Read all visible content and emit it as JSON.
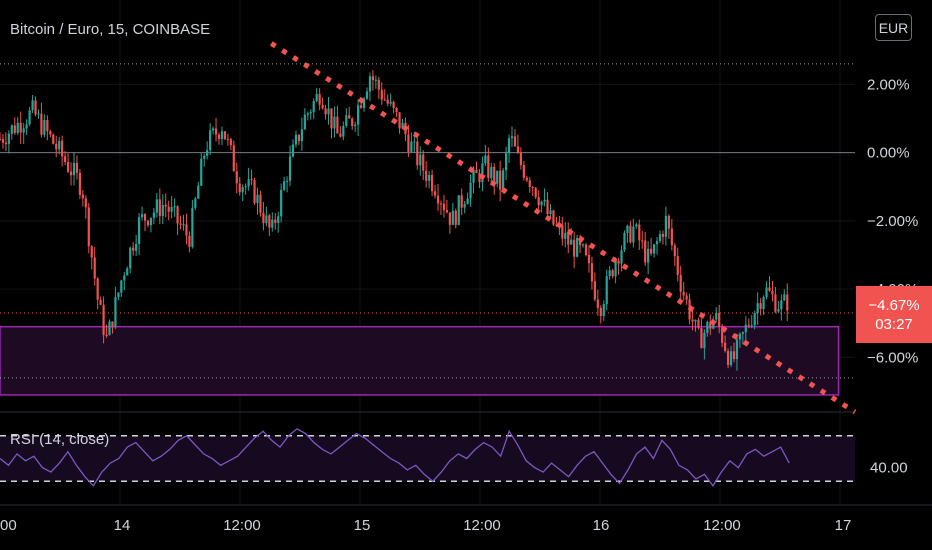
{
  "header": {
    "symbol_title": "Bitcoin / Euro, 15, COINBASE",
    "currency_button": "EUR"
  },
  "rsi_panel": {
    "title": "RSI (14, close)",
    "level_label": "40.00"
  },
  "price_badge": {
    "value": "−4.67%",
    "countdown": "03:27",
    "color": "#f05350"
  },
  "colors": {
    "background": "#000000",
    "up_candle": "#26a69a",
    "down_candle": "#ef5350",
    "trendline": "#f05350",
    "zone_border": "#9c27b0",
    "zone_fill": "#1f0a24",
    "rsi_line": "#7e57c2",
    "rsi_band_fill": "#150a1f"
  },
  "chart_data": {
    "type": "candlestick",
    "symbol": "Bitcoin / Euro",
    "interval": "15",
    "exchange": "COINBASE",
    "y_axis": {
      "unit": "percent",
      "tick_labels": [
        "2.00%",
        "0.00%",
        "−2.00%",
        "−4.00%",
        "−6.00%"
      ],
      "tick_values": [
        2,
        0,
        -2,
        -4,
        -6
      ],
      "range": [
        -7.6,
        3.3
      ]
    },
    "x_axis": {
      "tick_labels": [
        "00",
        "14",
        "12:00",
        "15",
        "12:00",
        "16",
        "12:00",
        "17"
      ]
    },
    "close_path": [
      [
        0,
        0.4
      ],
      [
        4,
        1.2
      ],
      [
        7,
        0.1
      ],
      [
        10,
        -1.0
      ],
      [
        12,
        -4.5
      ],
      [
        13,
        -5.5
      ],
      [
        15,
        -3.5
      ],
      [
        17,
        -2.0
      ],
      [
        20,
        -1.5
      ],
      [
        23,
        -2.5
      ],
      [
        25,
        0.2
      ],
      [
        27,
        0.8
      ],
      [
        29,
        -0.8
      ],
      [
        31,
        -1.2
      ],
      [
        33,
        -2.4
      ],
      [
        35,
        -0.5
      ],
      [
        37,
        1.0
      ],
      [
        39,
        1.8
      ],
      [
        41,
        0.5
      ],
      [
        43,
        1.0
      ],
      [
        45,
        2.3
      ],
      [
        47,
        1.5
      ],
      [
        49,
        0.7
      ],
      [
        51,
        -0.3
      ],
      [
        53,
        -1.0
      ],
      [
        55,
        -2.0
      ],
      [
        57,
        -1.0
      ],
      [
        59,
        -0.4
      ],
      [
        61,
        -1.0
      ],
      [
        62,
        0.5
      ],
      [
        63,
        -0.2
      ],
      [
        65,
        -1.0
      ],
      [
        67,
        -2.0
      ],
      [
        69,
        -2.6
      ],
      [
        71,
        -3.0
      ],
      [
        73,
        -4.5
      ],
      [
        75,
        -3.0
      ],
      [
        77,
        -2.2
      ],
      [
        79,
        -3.2
      ],
      [
        81,
        -2.0
      ],
      [
        83,
        -4.0
      ],
      [
        85,
        -5.5
      ],
      [
        87,
        -4.8
      ],
      [
        89,
        -6.2
      ],
      [
        91,
        -5.0
      ],
      [
        93,
        -4.0
      ],
      [
        95,
        -4.5
      ],
      [
        96,
        -4.3
      ]
    ],
    "last_change_percent": -4.67,
    "annotations": {
      "descending_trendline": {
        "from": [
          33,
          3.2
        ],
        "to": [
          104,
          -7.6
        ],
        "style": "dotted"
      },
      "support_zone": {
        "top": -5.1,
        "bottom": -7.1,
        "x_end": 102
      },
      "dotted_levels": [
        2.6,
        -4.7,
        -6.6
      ],
      "solid_level": 0
    },
    "rsi": {
      "period": 14,
      "source": "close",
      "band": [
        60,
        40
      ],
      "level_label": "40.00",
      "range": [
        30,
        70
      ],
      "values": [
        50,
        47,
        52,
        49,
        51,
        46,
        44,
        48,
        53,
        47,
        42,
        38,
        44,
        48,
        50,
        55,
        57,
        53,
        49,
        51,
        54,
        58,
        60,
        56,
        52,
        50,
        47,
        49,
        51,
        55,
        59,
        62,
        58,
        55,
        60,
        63,
        61,
        57,
        54,
        52,
        55,
        58,
        61,
        59,
        56,
        53,
        50,
        48,
        45,
        47,
        43,
        40,
        44,
        49,
        52,
        50,
        54,
        57,
        55,
        51,
        62,
        56,
        49,
        46,
        44,
        48,
        45,
        42,
        47,
        51,
        53,
        48,
        43,
        39,
        45,
        52,
        55,
        50,
        58,
        54,
        47,
        45,
        41,
        43,
        38,
        44,
        49,
        46,
        52,
        54,
        51,
        53,
        55,
        48
      ]
    }
  }
}
